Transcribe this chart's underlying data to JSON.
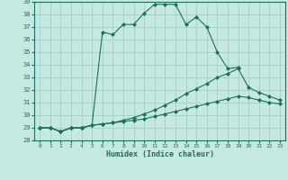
{
  "title": "",
  "xlabel": "Humidex (Indice chaleur)",
  "xlim": [
    -0.5,
    23.5
  ],
  "ylim": [
    28,
    39
  ],
  "xticks": [
    0,
    1,
    2,
    3,
    4,
    5,
    6,
    7,
    8,
    9,
    10,
    11,
    12,
    13,
    14,
    15,
    16,
    17,
    18,
    19,
    20,
    21,
    22,
    23
  ],
  "yticks": [
    28,
    29,
    30,
    31,
    32,
    33,
    34,
    35,
    36,
    37,
    38,
    39
  ],
  "bg_color": "#c5e8e0",
  "line_color": "#1a7060",
  "grid_color": "#a0ccc0",
  "lines": [
    {
      "x": [
        0,
        1,
        2,
        3,
        4,
        5,
        6,
        7,
        8,
        9,
        10,
        11,
        12,
        13,
        14,
        15,
        16,
        17,
        18,
        19
      ],
      "y": [
        29.0,
        29.0,
        28.7,
        29.0,
        29.0,
        29.2,
        36.6,
        36.4,
        37.2,
        37.2,
        38.1,
        38.8,
        38.8,
        38.8,
        37.2,
        37.8,
        37.0,
        35.0,
        33.7,
        33.8
      ]
    },
    {
      "x": [
        0,
        1,
        2,
        3,
        4,
        5,
        6,
        7,
        8,
        9,
        10,
        11,
        12,
        13,
        14,
        15,
        16,
        17,
        18,
        19,
        20,
        21,
        22,
        23
      ],
      "y": [
        29.0,
        29.0,
        28.7,
        29.0,
        29.0,
        29.2,
        29.3,
        29.4,
        29.6,
        29.8,
        30.1,
        30.4,
        30.8,
        31.2,
        31.7,
        32.1,
        32.5,
        33.0,
        33.3,
        33.7,
        32.2,
        31.8,
        31.5,
        31.2
      ]
    },
    {
      "x": [
        0,
        1,
        2,
        3,
        4,
        5,
        6,
        7,
        8,
        9,
        10,
        11,
        12,
        13,
        14,
        15,
        16,
        17,
        18,
        19,
        20,
        21,
        22,
        23
      ],
      "y": [
        29.0,
        29.0,
        28.7,
        29.0,
        29.0,
        29.2,
        29.3,
        29.4,
        29.5,
        29.6,
        29.7,
        29.9,
        30.1,
        30.3,
        30.5,
        30.7,
        30.9,
        31.1,
        31.3,
        31.5,
        31.4,
        31.2,
        31.0,
        30.9
      ]
    }
  ]
}
